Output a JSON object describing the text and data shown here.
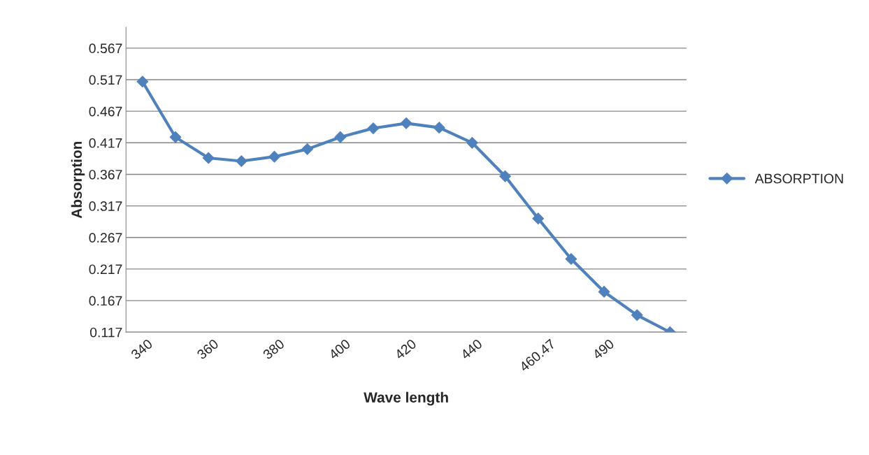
{
  "chart_data": {
    "type": "line",
    "xlabel": "Wave length",
    "ylabel": "Absorption",
    "categories": [
      "340",
      null,
      "360",
      null,
      "380",
      null,
      "400",
      null,
      "420",
      null,
      "440",
      null,
      "460.47",
      null,
      "490",
      null,
      null
    ],
    "series": [
      {
        "name": "ABSORPTION",
        "color": "#4f81bd",
        "values": [
          0.514,
          0.426,
          0.393,
          0.388,
          0.395,
          0.407,
          0.426,
          0.44,
          0.448,
          0.441,
          0.417,
          0.364,
          0.297,
          0.233,
          0.181,
          0.144,
          0.117
        ]
      }
    ],
    "ylim": [
      0.117,
      0.6
    ],
    "yticks": [
      0.117,
      0.167,
      0.217,
      0.267,
      0.317,
      0.367,
      0.417,
      0.467,
      0.517,
      0.567
    ],
    "grid": "y",
    "legend": "right",
    "marker": "diamond",
    "line_style": "solid"
  }
}
